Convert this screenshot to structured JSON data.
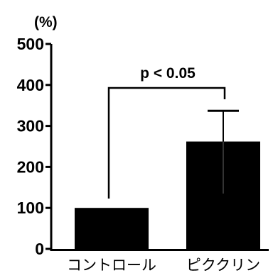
{
  "chart_data": {
    "type": "bar",
    "title": "",
    "xlabel": "",
    "ylabel": "",
    "unit_label": "(%)",
    "categories": [
      "コントロール",
      "ピククリン"
    ],
    "values": [
      100,
      262
    ],
    "error_upper": [
      null,
      337
    ],
    "error_lower": [
      null,
      135
    ],
    "ylim": [
      0,
      500
    ],
    "yticks": [
      0,
      100,
      200,
      300,
      400,
      500
    ],
    "ytick_labels": [
      "0",
      "100",
      "200",
      "300",
      "400",
      "500"
    ],
    "grid": false,
    "legend": "none",
    "bar_color": "#000000",
    "significance": {
      "label": "p < 0.05",
      "between": [
        0,
        1
      ]
    }
  }
}
